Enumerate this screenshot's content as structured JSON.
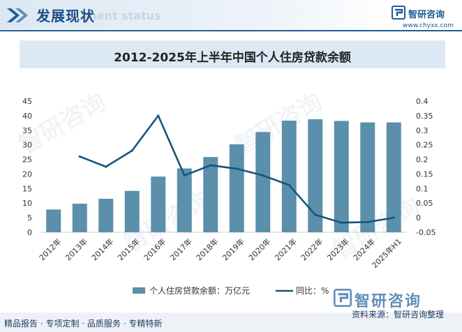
{
  "header": {
    "title": "发展现状",
    "subtitle": "ment status",
    "logo_text": "智研咨询",
    "logo_url": "www.chyxx.com"
  },
  "watermark": {
    "text": "智研咨询"
  },
  "footer": {
    "left": "精品报告 · 专项定制 · 品质服务 · 专精特新",
    "logo_text": "智研咨询",
    "source": "资料来源：智研咨询整理"
  },
  "colors": {
    "bar": "#5b8fab",
    "line": "#14567a",
    "accent": "#1e5b94"
  },
  "chart_data": {
    "type": "bar",
    "title": "2012-2025年上半年中国个人住房贷款余额",
    "categories": [
      "2012年",
      "2013年",
      "2014年",
      "2015年",
      "2016年",
      "2017年",
      "2018年",
      "2019年",
      "2020年",
      "2021年",
      "2022年",
      "2023年",
      "2024年",
      "2025年H1"
    ],
    "series": [
      {
        "name": "个人住房贷款余额：万亿元",
        "type": "bar",
        "axis": "left",
        "values": [
          7.8,
          9.8,
          11.5,
          14.2,
          19.1,
          21.9,
          25.8,
          30.2,
          34.4,
          38.3,
          38.8,
          38.2,
          37.7,
          37.7
        ]
      },
      {
        "name": "同比：%",
        "type": "line",
        "axis": "right",
        "values": [
          null,
          0.21,
          0.175,
          0.23,
          0.35,
          0.145,
          0.18,
          0.168,
          0.145,
          0.112,
          0.01,
          -0.017,
          -0.015,
          0.0
        ]
      }
    ],
    "left_axis": {
      "min": 0,
      "max": 45,
      "ticks": [
        "0",
        "5",
        "10",
        "15",
        "20",
        "25",
        "30",
        "35",
        "40",
        "45"
      ]
    },
    "right_axis": {
      "min": -0.05,
      "max": 0.4,
      "ticks": [
        "-0.05",
        "0",
        "0.05",
        "0.1",
        "0.15",
        "0.2",
        "0.25",
        "0.3",
        "0.35",
        "0.4"
      ]
    },
    "grid": false,
    "legend_position": "bottom"
  }
}
